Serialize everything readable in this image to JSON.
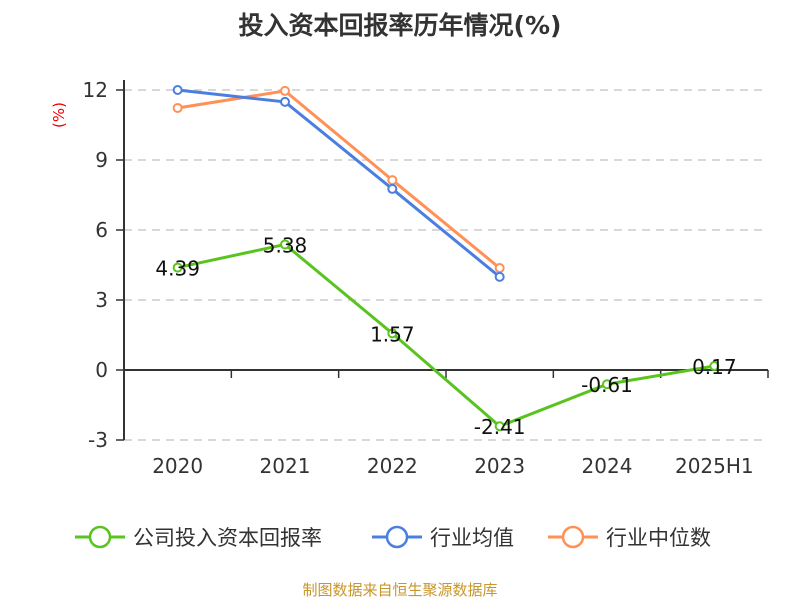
{
  "chart_data": {
    "type": "line",
    "title": "投入资本回报率历年情况(%)",
    "ylabel": "(%)",
    "categories": [
      "2020",
      "2021",
      "2022",
      "2023",
      "2024",
      "2025H1"
    ],
    "ylim": [
      -3,
      12
    ],
    "yticks": [
      "12",
      "9",
      "6",
      "3",
      "0",
      "-3"
    ],
    "grid": "horizontal dashed",
    "legend": "bottom",
    "series": [
      {
        "name": "公司投入资本回报率",
        "color": "#59c31f",
        "values": [
          4.39,
          5.38,
          1.57,
          -2.41,
          -0.61,
          0.17
        ],
        "labels": [
          "4.39",
          "5.38",
          "1.57",
          "-2.41",
          "-0.61",
          "0.17"
        ]
      },
      {
        "name": "行业均值",
        "color": "#4a7fe0",
        "values": [
          12.0,
          11.49,
          7.76,
          3.99,
          null,
          null
        ]
      },
      {
        "name": "行业中位数",
        "color": "#ff9157",
        "values": [
          11.23,
          11.96,
          8.14,
          4.37,
          null,
          null
        ]
      }
    ]
  },
  "source": "制图数据来自恒生聚源数据库"
}
